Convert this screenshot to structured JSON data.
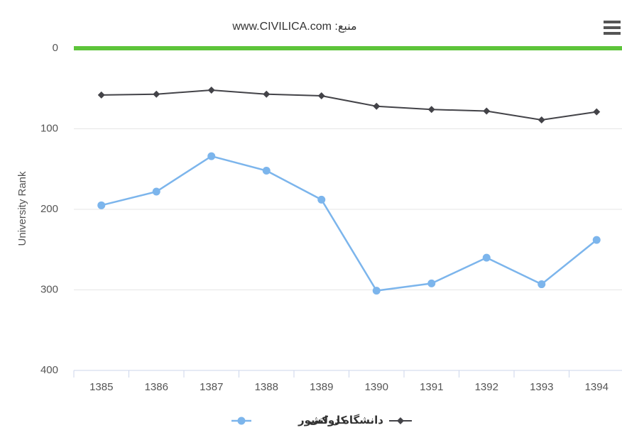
{
  "chart_data": {
    "type": "line",
    "title": "منبع: www.CIVILICA.com",
    "y_label": "University Rank",
    "categories": [
      "1385",
      "1386",
      "1387",
      "1388",
      "1389",
      "1390",
      "1391",
      "1392",
      "1393",
      "1394"
    ],
    "series": [
      {
        "name": "کل کشور",
        "color": "#7cb5ec",
        "marker": "circle",
        "values": [
          195,
          178,
          134,
          152,
          188,
          301,
          292,
          260,
          293,
          238
        ]
      },
      {
        "name": "دانشگاه دولتی",
        "color": "#434348",
        "marker": "diamond",
        "values": [
          58,
          57,
          52,
          57,
          59,
          72,
          76,
          78,
          89,
          79
        ]
      }
    ],
    "ylim": [
      0,
      400
    ],
    "yticks": [
      0,
      100,
      200,
      300,
      400
    ],
    "y_reversed": true,
    "grid": true,
    "plot_line": {
      "value": 0,
      "color": "#5dc43a"
    }
  }
}
